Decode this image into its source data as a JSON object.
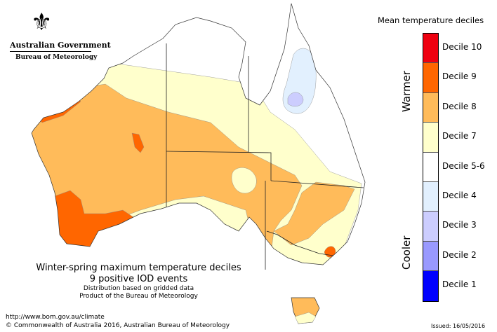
{
  "logo": {
    "line1": "Australian Government",
    "line2": "Bureau of Meteorology"
  },
  "title": "Winter-spring maximum temperature deciles",
  "subtitle": "9 positive IOD events",
  "note1": "Distribution based on gridded data",
  "note2": "Product of the Bureau of Meteorology",
  "url": "http://www.bom.gov.au/climate",
  "copyright": "© Commonwealth of Australia 2016, Australian Bureau of Meteorology",
  "issued": "Issued: 16/05/2016",
  "legend": {
    "title": "Mean temperature deciles",
    "warmer": "Warmer",
    "cooler": "Cooler",
    "items": [
      {
        "label": "Decile 10",
        "color": "#ee0010"
      },
      {
        "label": "Decile 9",
        "color": "#ff6600"
      },
      {
        "label": "Decile 8",
        "color": "#ffbb5a"
      },
      {
        "label": "Decile 7",
        "color": "#ffffcc"
      },
      {
        "label": "Decile 5-6",
        "color": "#ffffff"
      },
      {
        "label": "Decile 4",
        "color": "#e2f0fe"
      },
      {
        "label": "Decile 3",
        "color": "#cccdfe"
      },
      {
        "label": "Decile 2",
        "color": "#9999fe"
      },
      {
        "label": "Decile 1",
        "color": "#0000fe"
      }
    ]
  }
}
